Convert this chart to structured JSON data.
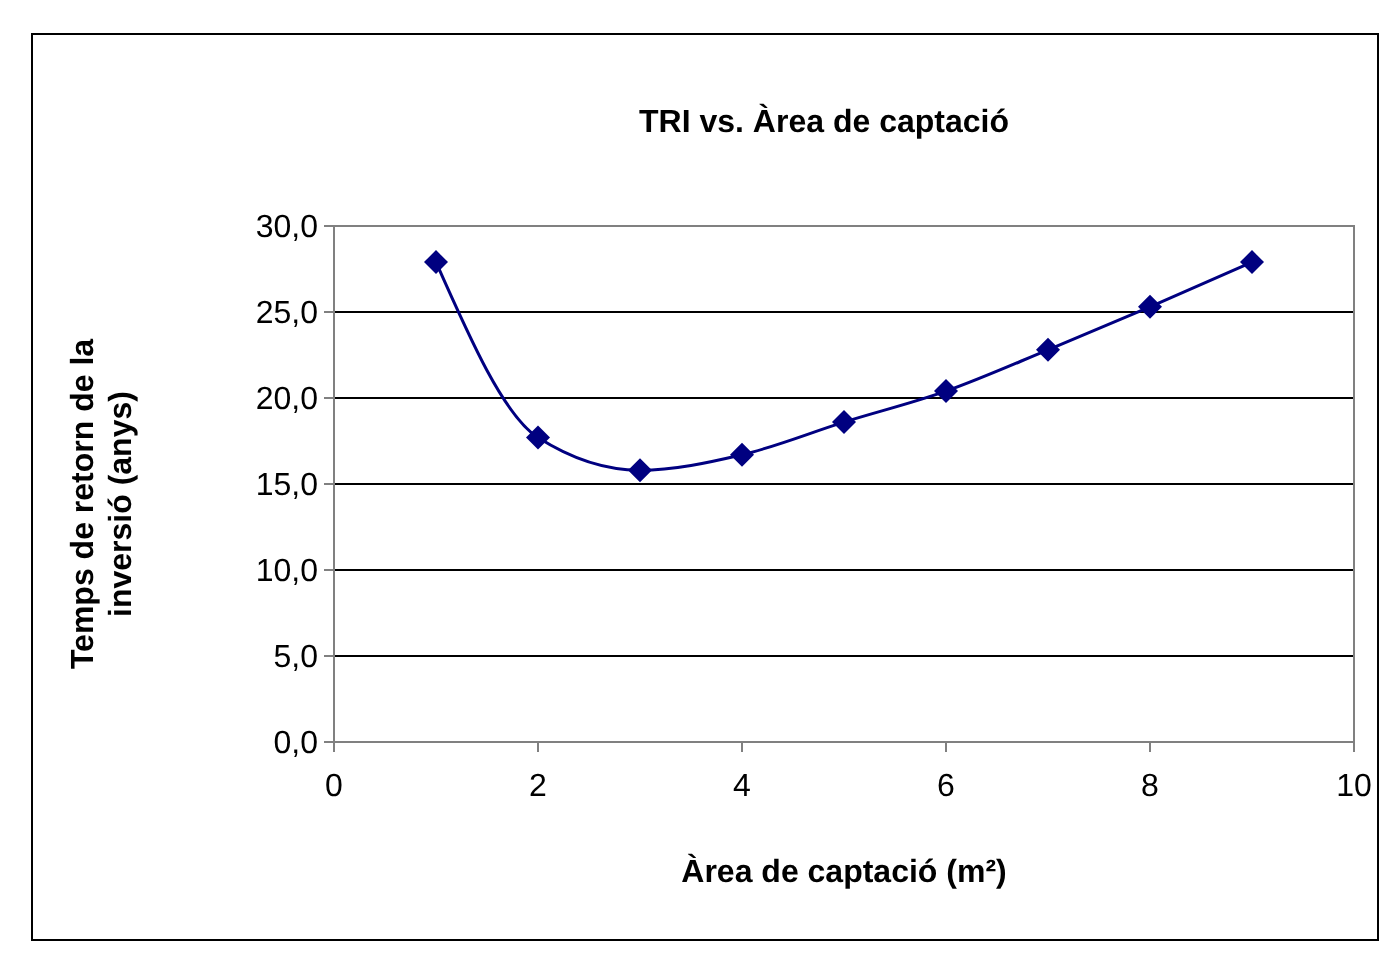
{
  "chart_data": {
    "type": "line",
    "title": "TRI vs. Àrea de captació",
    "xlabel": "Àrea de captació (m²)",
    "ylabel": "Temps de retorn de la inversió (anys)",
    "x": [
      1,
      2,
      3,
      4,
      5,
      6,
      7,
      8,
      9
    ],
    "series": [
      {
        "color": "#000080",
        "values": [
          27.9,
          17.7,
          15.8,
          16.7,
          18.6,
          20.4,
          22.8,
          25.3,
          27.9
        ]
      }
    ],
    "xlim": [
      0,
      10
    ],
    "xticks": [
      0,
      2,
      4,
      6,
      8,
      10
    ],
    "ylim": [
      0,
      30
    ],
    "yticks": [
      {
        "value": 0,
        "label": "0,0"
      },
      {
        "value": 5,
        "label": "5,0"
      },
      {
        "value": 10,
        "label": "10,0"
      },
      {
        "value": 15,
        "label": "15,0"
      },
      {
        "value": 20,
        "label": "20,0"
      },
      {
        "value": 25,
        "label": "25,0"
      },
      {
        "value": 30,
        "label": "30,0"
      }
    ],
    "grid": "y",
    "marker": "diamond",
    "line_style": "solid"
  }
}
